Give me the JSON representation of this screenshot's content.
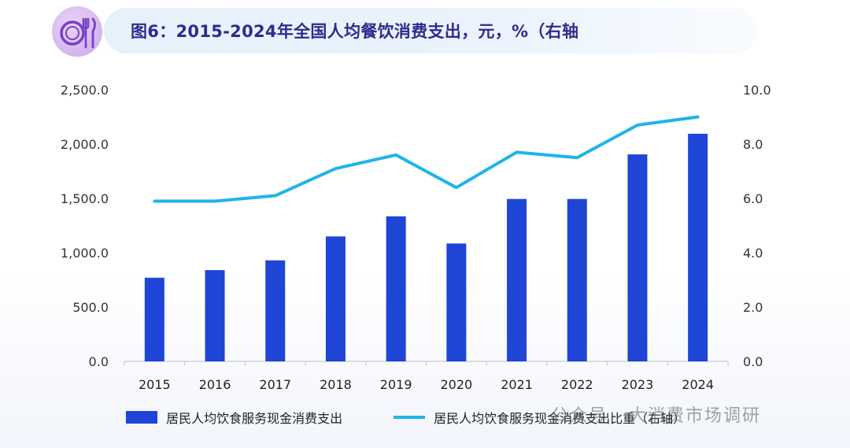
{
  "title": "图6：2015-2024年全国人均餐饮消费支出，元，%（右轴",
  "watermark": "公众号 · 大消费市场调研",
  "colors": {
    "bar": "#1f45d6",
    "line": "#1fb4e8",
    "title": "#2f2b8c",
    "badge_icon": "#7a3fc8"
  },
  "chart_data": {
    "type": "bar",
    "categories": [
      "2015",
      "2016",
      "2017",
      "2018",
      "2019",
      "2020",
      "2021",
      "2022",
      "2023",
      "2024"
    ],
    "series": [
      {
        "name": "居民人均饮食服务现金消费支出",
        "type": "bar",
        "axis": "left",
        "values": [
          770,
          840,
          930,
          1150,
          1335,
          1085,
          1495,
          1495,
          1905,
          2095
        ]
      },
      {
        "name": "居民人均饮食服务现金消费支出比重（右轴）",
        "type": "line",
        "axis": "right",
        "values": [
          5.9,
          5.9,
          6.1,
          7.1,
          7.6,
          6.4,
          7.7,
          7.5,
          8.7,
          9.0
        ]
      }
    ],
    "y_left": {
      "min": 0,
      "max": 2500,
      "ticks": [
        "0.0",
        "500.0",
        "1,000.0",
        "1,500.0",
        "2,000.0",
        "2,500.0"
      ]
    },
    "y_right": {
      "min": 0,
      "max": 10,
      "ticks": [
        "0.0",
        "2.0",
        "4.0",
        "6.0",
        "8.0",
        "10.0"
      ]
    },
    "grid": false,
    "legend_position": "bottom"
  }
}
